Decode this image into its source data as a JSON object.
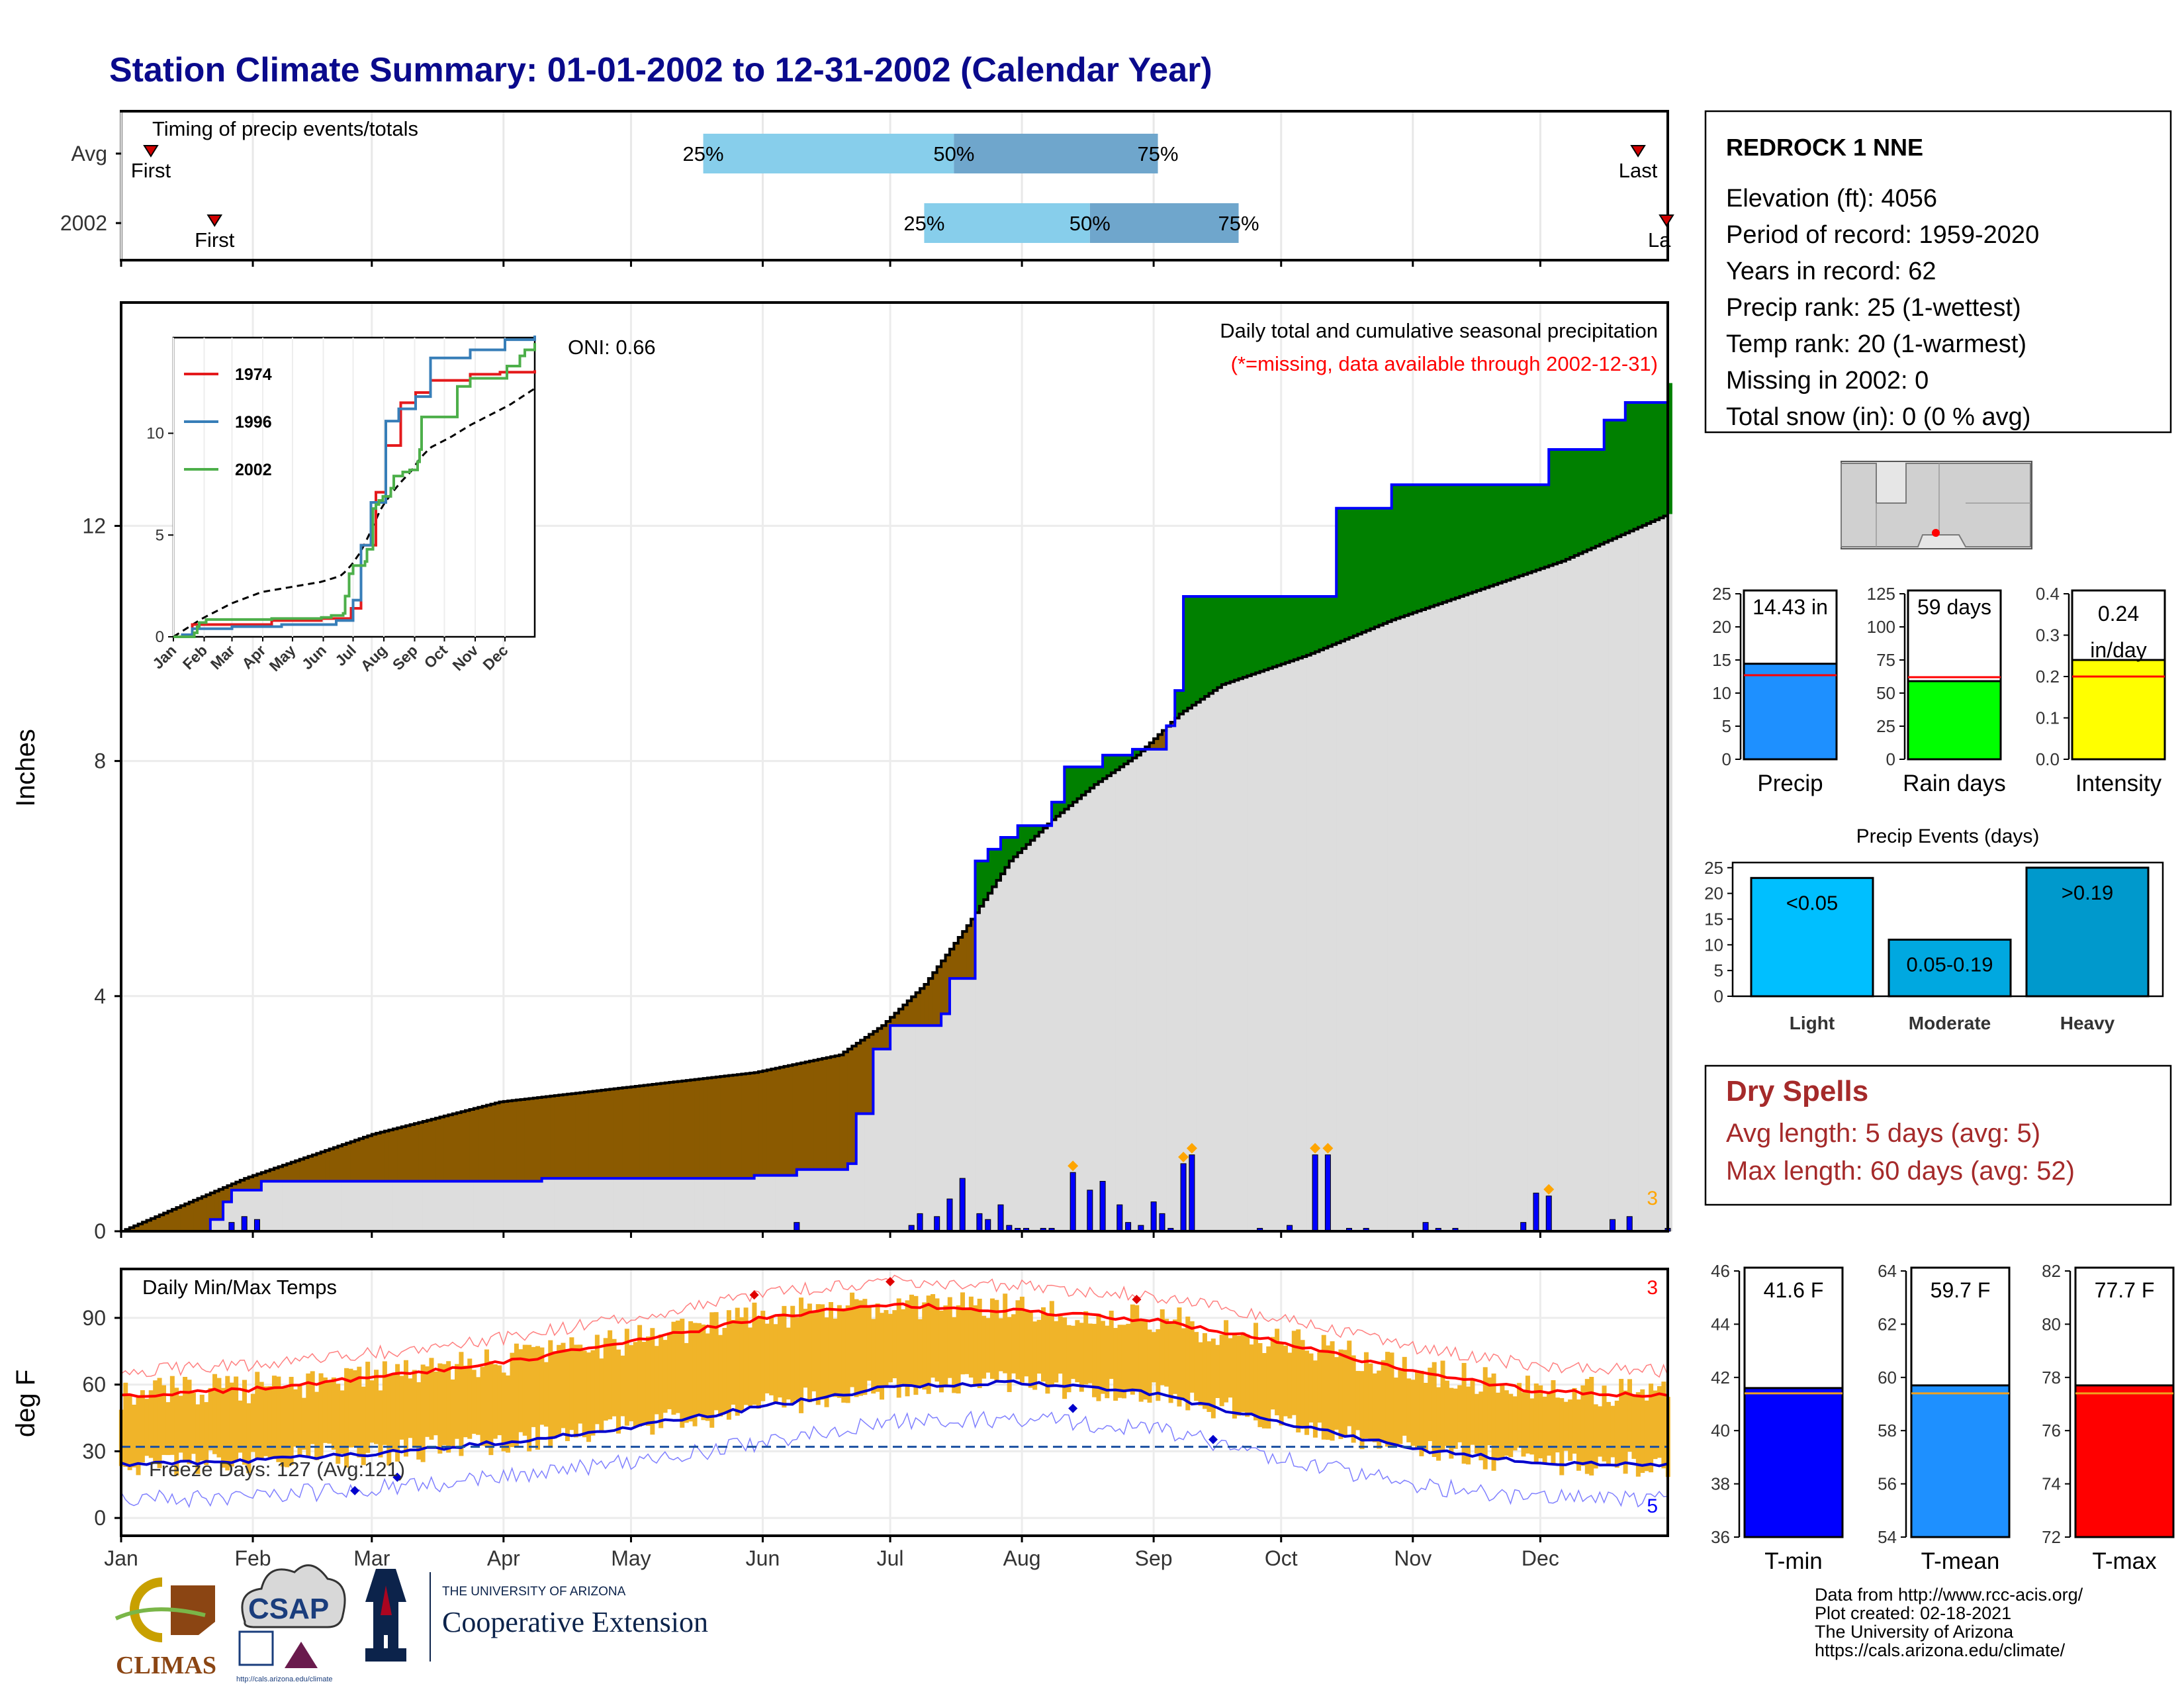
{
  "title": "Station Climate Summary: 01-01-2002 to 12-31-2002 (Calendar Year)",
  "colors": {
    "title": "#0a0a8c",
    "q1": "#87ceeb",
    "q2": "#6fa6cc",
    "surplus": "#008000",
    "deficit": "#8b5a00",
    "normal_fill": "#dddddd",
    "precip_bar": "#1e90ff",
    "rain_bar": "#00ff00",
    "intensity_bar": "#ffff00",
    "events_bar": "#00bfff",
    "tmin_bar": "#0000ff",
    "tmean_bar": "#1e90ff",
    "tmax_bar": "#ff0000",
    "temp_range": "#f0b429",
    "dry_spells": "#a52a2a"
  },
  "timing": {
    "label": "Timing of precip events/totals",
    "rows": [
      {
        "name": "Avg",
        "first_label": "First",
        "last_label": "Last",
        "first_day": 8,
        "last_day": 358,
        "p25": 138,
        "p50": 197,
        "p75": 245
      },
      {
        "name": "2002",
        "first_label": "First",
        "last_label": "La",
        "first_day": 23,
        "last_day": 365,
        "p25": 190,
        "p50": 229,
        "p75": 264
      }
    ],
    "pct_labels": [
      "25%",
      "50%",
      "75%"
    ]
  },
  "months": [
    "Jan",
    "Feb",
    "Mar",
    "Apr",
    "May",
    "Jun",
    "Jul",
    "Aug",
    "Sep",
    "Oct",
    "Nov",
    "Dec"
  ],
  "precip_panel": {
    "ylabel": "Inches",
    "yticks": [
      "0",
      "4",
      "8",
      "12"
    ],
    "note_title": "Daily total and cumulative seasonal precipitation",
    "note_missing": "(*=missing, data available through 2002-12-31)",
    "oni": "ONI: 0.66",
    "corner_count": "3"
  },
  "inset": {
    "legend": [
      "1974",
      "1996",
      "2002"
    ],
    "yticks": [
      "0",
      "5",
      "10"
    ],
    "xticks": [
      "Jan",
      "Feb",
      "Mar",
      "Apr",
      "May",
      "Jun",
      "Jul",
      "Aug",
      "Sep",
      "Oct",
      "Nov",
      "Dec"
    ],
    "colors": [
      "#e41a1c",
      "#377eb8",
      "#4daf4a"
    ]
  },
  "temp_panel": {
    "title": "Daily Min/Max Temps",
    "ylabel": "deg F",
    "yticks": [
      "0",
      "30",
      "60",
      "90"
    ],
    "freeze_text": "Freeze Days: 127 (Avg:121)",
    "count_hot": "3",
    "count_cold": "5"
  },
  "station": {
    "name": "REDROCK 1 NNE",
    "lines": [
      "Elevation (ft): 4056",
      "Period of record: 1959-2020",
      "Years in record: 62",
      "Precip rank: 25 (1-wettest)",
      "Temp rank: 20 (1-warmest)",
      "Missing in 2002: 0",
      "Total snow (in): 0 (0 % avg)"
    ]
  },
  "mini_bars": [
    {
      "label": "Precip",
      "value": 14.43,
      "avg": 12.7,
      "text": "14.43 in",
      "ymax": 25,
      "ticks": [
        "0",
        "5",
        "10",
        "15",
        "20",
        "25"
      ]
    },
    {
      "label": "Rain days",
      "value": 59,
      "avg": 62,
      "text": "59 days",
      "ymax": 125,
      "ticks": [
        "0",
        "25",
        "50",
        "75",
        "100",
        "125"
      ]
    },
    {
      "label": "Intensity",
      "value": 0.24,
      "avg": 0.2,
      "text": "0.24 in/day",
      "text_lines": [
        "0.24",
        "in/day"
      ],
      "ymax": 0.4,
      "ticks": [
        "0.0",
        "0.1",
        "0.2",
        "0.3",
        "0.4"
      ]
    }
  ],
  "events": {
    "title": "Precip Events (days)",
    "ticks": [
      "0",
      "5",
      "10",
      "15",
      "20",
      "25"
    ],
    "bars": [
      {
        "label": "Light",
        "value": 23,
        "tag": "<0.05"
      },
      {
        "label": "Moderate",
        "value": 11,
        "tag": "0.05-0.19"
      },
      {
        "label": "Heavy",
        "value": 25,
        "tag": ">0.19"
      }
    ]
  },
  "dry_spells": {
    "title": "Dry Spells",
    "avg": "Avg length: 5 days (avg: 5)",
    "max": "Max length: 60 days (avg: 52)"
  },
  "temp_bars": [
    {
      "label": "T-min",
      "value": 41.6,
      "avg": 41.4,
      "text": "41.6 F",
      "ymin": 36,
      "ymax": 46,
      "ticks": [
        "36",
        "38",
        "40",
        "42",
        "44",
        "46"
      ]
    },
    {
      "label": "T-mean",
      "value": 59.7,
      "avg": 59.4,
      "text": "59.7 F",
      "ymin": 54,
      "ymax": 64,
      "ticks": [
        "54",
        "56",
        "58",
        "60",
        "62",
        "64"
      ]
    },
    {
      "label": "T-max",
      "value": 77.7,
      "avg": 77.4,
      "text": "77.7 F",
      "ymin": 72,
      "ymax": 82,
      "ticks": [
        "72",
        "74",
        "76",
        "78",
        "80",
        "82"
      ]
    }
  ],
  "footer": {
    "lines": [
      "Data from http://www.rcc-acis.org/",
      "Plot created: 02-18-2021",
      "The University of Arizona",
      "https://cals.arizona.edu/climate/"
    ],
    "climas": "CLIMAS",
    "csap": "CSAP",
    "csap_url": "http://cals.arizona.edu/climate",
    "ua_small": "THE UNIVERSITY OF ARIZONA",
    "ua_big": "Cooperative Extension"
  },
  "chart_data": {
    "type": "area",
    "title": "Daily total and cumulative seasonal precipitation",
    "ylabel": "Inches",
    "ylim": [
      0,
      15.8
    ],
    "series": [
      {
        "name": "2002",
        "x": [
          1,
          20,
          22,
          25,
          27,
          34,
          50,
          100,
          150,
          160,
          172,
          174,
          178,
          182,
          194,
          196,
          202,
          205,
          208,
          212,
          220,
          223,
          232,
          239,
          247,
          249,
          251,
          285,
          287,
          300,
          335,
          337,
          350,
          355,
          365
        ],
        "values": [
          0.0,
          0.0,
          0.2,
          0.5,
          0.7,
          0.85,
          0.85,
          0.9,
          0.95,
          1.05,
          1.15,
          2.0,
          3.1,
          3.5,
          3.7,
          4.3,
          6.3,
          6.5,
          6.7,
          6.9,
          7.3,
          7.9,
          8.1,
          8.2,
          8.6,
          9.2,
          10.8,
          10.8,
          12.3,
          12.7,
          12.7,
          13.3,
          13.8,
          14.1,
          14.43
        ]
      },
      {
        "name": "Avg",
        "x": [
          1,
          30,
          60,
          90,
          120,
          150,
          170,
          180,
          190,
          200,
          210,
          220,
          230,
          240,
          250,
          260,
          280,
          300,
          320,
          340,
          365
        ],
        "values": [
          0.0,
          0.9,
          1.65,
          2.2,
          2.45,
          2.7,
          3.0,
          3.5,
          4.2,
          5.2,
          6.3,
          7.0,
          7.6,
          8.1,
          8.8,
          9.3,
          9.8,
          10.4,
          10.9,
          11.4,
          12.2
        ]
      }
    ],
    "daily_precip": {
      "x": [
        27,
        30,
        33,
        160,
        187,
        189,
        193,
        196,
        199,
        203,
        205,
        208,
        210,
        212,
        214,
        218,
        220,
        225,
        229,
        232,
        236,
        238,
        241,
        244,
        246,
        248,
        251,
        253,
        269,
        276,
        282,
        285,
        290,
        294,
        308,
        311,
        315,
        331,
        334,
        337,
        352,
        356,
        365
      ],
      "values": [
        0.15,
        0.25,
        0.2,
        0.15,
        0.1,
        0.3,
        0.25,
        0.55,
        0.9,
        0.3,
        0.2,
        0.45,
        0.1,
        0.05,
        0.05,
        0.05,
        0.05,
        1.0,
        0.7,
        0.85,
        0.45,
        0.15,
        0.1,
        0.5,
        0.3,
        0.05,
        1.15,
        1.3,
        0.05,
        0.1,
        1.3,
        1.3,
        0.05,
        0.05,
        0.15,
        0.05,
        0.05,
        0.15,
        0.65,
        0.6,
        0.2,
        0.25,
        0.05
      ]
    },
    "temps": {
      "x": [
        1,
        32,
        60,
        91,
        121,
        152,
        182,
        213,
        244,
        274,
        305,
        335,
        365
      ],
      "avg_max": [
        55,
        58,
        63,
        70,
        79,
        90,
        96,
        93,
        89,
        79,
        66,
        57,
        55
      ],
      "avg_min": [
        24,
        26,
        29,
        34,
        41,
        50,
        59,
        61,
        56,
        43,
        31,
        25,
        24
      ],
      "freeze_line": 32,
      "ylim": [
        -8,
        112
      ]
    }
  }
}
